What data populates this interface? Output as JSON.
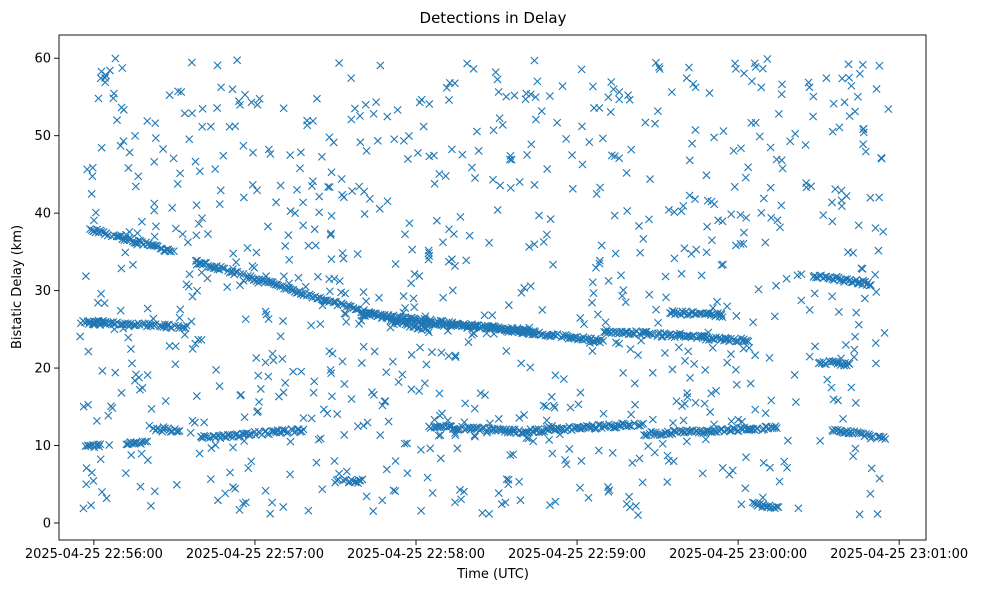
{
  "chart_data": {
    "type": "scatter",
    "title": "Detections in Delay",
    "xlabel": "Time (UTC)",
    "ylabel": "Bistatic Delay (km)",
    "marker": "x",
    "color": "#1f77b4",
    "grid": false,
    "legend": "none",
    "x_axis_type": "time",
    "xlim": [
      "2025-04-25 22:55:47",
      "2025-04-25 23:01:10"
    ],
    "ylim": [
      -2.2,
      63
    ],
    "x_ticks": [
      "2025-04-25 22:56:00",
      "2025-04-25 22:57:00",
      "2025-04-25 22:58:00",
      "2025-04-25 22:59:00",
      "2025-04-25 23:00:00",
      "2025-04-25 23:01:00"
    ],
    "y_ticks": [
      "0",
      "10",
      "20",
      "30",
      "40",
      "50",
      "60"
    ],
    "tracks": [
      {
        "start": "2025-04-25 22:55:58",
        "end": "2025-04-25 22:56:30",
        "delay_start": 38.0,
        "delay_end": 35.0
      },
      {
        "start": "2025-04-25 22:56:38",
        "end": "2025-04-25 22:58:05",
        "delay_start": 33.8,
        "delay_end": 24.8
      },
      {
        "start": "2025-04-25 22:57:40",
        "end": "2025-04-25 22:59:10",
        "delay_start": 27.0,
        "delay_end": 23.5
      },
      {
        "start": "2025-04-25 22:59:10",
        "end": "2025-04-25 23:00:05",
        "delay_start": 24.8,
        "delay_end": 23.5
      },
      {
        "start": "2025-04-25 23:00:28",
        "end": "2025-04-25 23:00:50",
        "delay_start": 32.0,
        "delay_end": 30.8
      },
      {
        "start": "2025-04-25 22:55:55",
        "end": "2025-04-25 22:56:35",
        "delay_start": 26.0,
        "delay_end": 25.3
      },
      {
        "start": "2025-04-25 22:57:55",
        "end": "2025-04-25 22:58:45",
        "delay_start": 26.0,
        "delay_end": 24.8
      },
      {
        "start": "2025-04-25 22:59:35",
        "end": "2025-04-25 22:59:55",
        "delay_start": 27.2,
        "delay_end": 26.8
      },
      {
        "start": "2025-04-25 23:00:30",
        "end": "2025-04-25 23:00:42",
        "delay_start": 20.8,
        "delay_end": 20.5
      },
      {
        "start": "2025-04-25 22:55:57",
        "end": "2025-04-25 22:56:03",
        "delay_start": 10.0,
        "delay_end": 10.0
      },
      {
        "start": "2025-04-25 22:56:12",
        "end": "2025-04-25 22:56:20",
        "delay_start": 10.3,
        "delay_end": 10.3
      },
      {
        "start": "2025-04-25 22:56:22",
        "end": "2025-04-25 22:56:32",
        "delay_start": 12.0,
        "delay_end": 12.0
      },
      {
        "start": "2025-04-25 22:56:40",
        "end": "2025-04-25 22:57:18",
        "delay_start": 11.0,
        "delay_end": 12.0
      },
      {
        "start": "2025-04-25 22:58:05",
        "end": "2025-04-25 22:58:40",
        "delay_start": 12.5,
        "delay_end": 11.8
      },
      {
        "start": "2025-04-25 22:58:40",
        "end": "2025-04-25 22:59:25",
        "delay_start": 11.8,
        "delay_end": 12.8
      },
      {
        "start": "2025-04-25 22:59:25",
        "end": "2025-04-25 23:00:15",
        "delay_start": 11.5,
        "delay_end": 12.3
      },
      {
        "start": "2025-04-25 23:00:05",
        "end": "2025-04-25 23:00:15",
        "delay_start": 2.5,
        "delay_end": 1.8
      },
      {
        "start": "2025-04-25 23:00:35",
        "end": "2025-04-25 23:00:55",
        "delay_start": 12.0,
        "delay_end": 11.0
      },
      {
        "start": "2025-04-25 22:55:58",
        "end": "2025-04-25 22:56:05",
        "delay_start": 25.8,
        "delay_end": 25.8
      },
      {
        "start": "2025-04-25 22:57:30",
        "end": "2025-04-25 22:57:40",
        "delay_start": 5.4,
        "delay_end": 5.4
      }
    ],
    "clutter_points": 900,
    "clutter_delay_range": [
      1,
      60
    ]
  }
}
